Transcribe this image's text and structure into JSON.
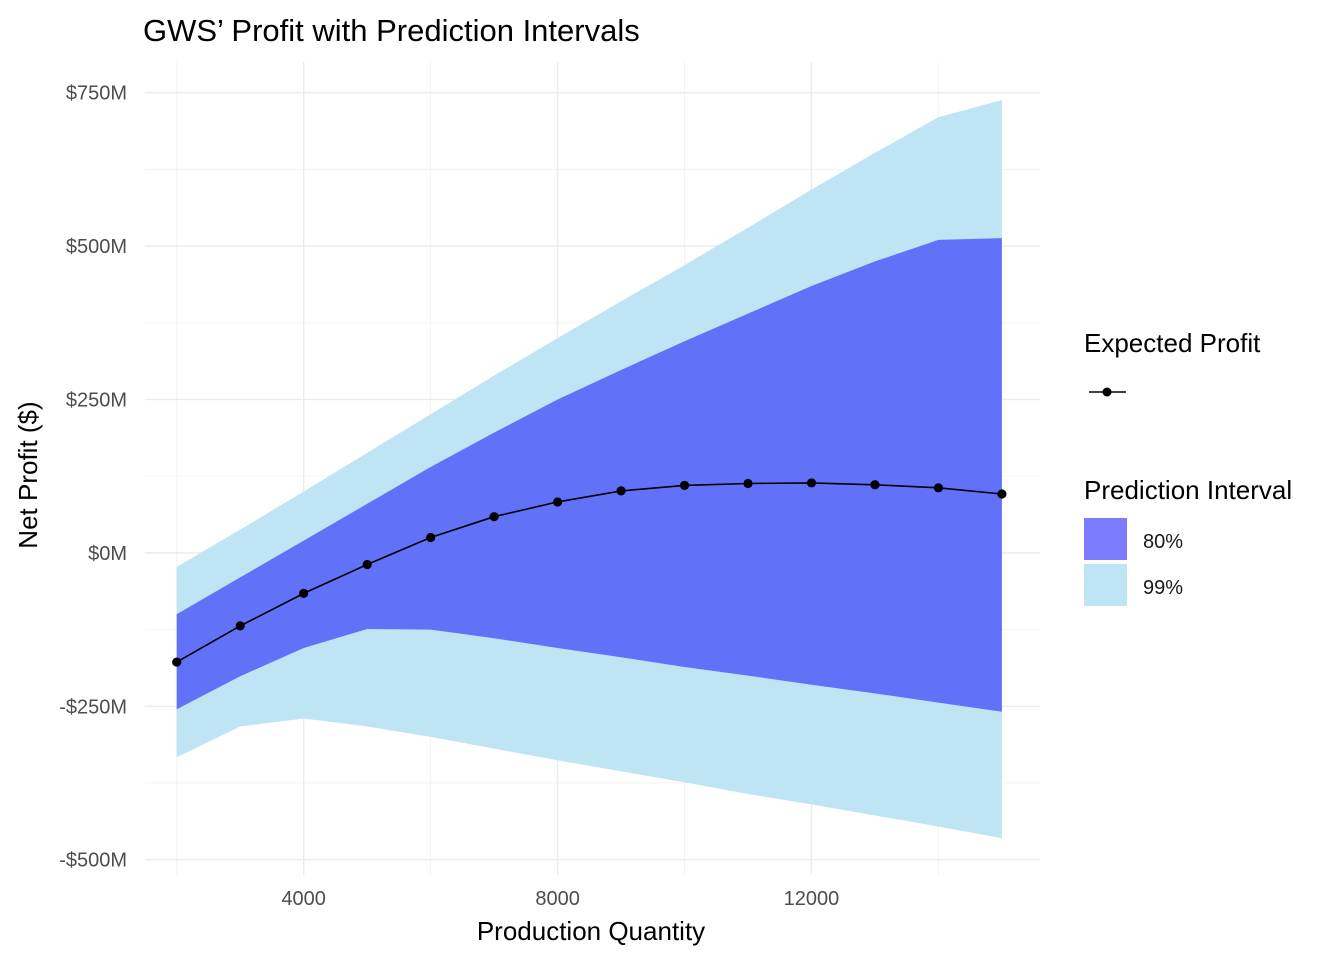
{
  "chart_data": {
    "type": "area",
    "title": "GWS’ Profit with Prediction Intervals",
    "xlabel": "Production Quantity",
    "ylabel": "Net Profit ($)",
    "xlim": [
      1500,
      15600
    ],
    "ylim": [
      -525,
      800
    ],
    "x_ticks": [
      {
        "value": 4000,
        "label": "4000"
      },
      {
        "value": 8000,
        "label": "8000"
      },
      {
        "value": 12000,
        "label": "12000"
      }
    ],
    "y_ticks": [
      {
        "value": 750,
        "label": "$750M"
      },
      {
        "value": 500,
        "label": "$500M"
      },
      {
        "value": 250,
        "label": "$250M"
      },
      {
        "value": 0,
        "label": "$0M"
      },
      {
        "value": -250,
        "label": "-$250M"
      },
      {
        "value": -500,
        "label": "-$500M"
      }
    ],
    "x": [
      2000,
      3000,
      4000,
      5000,
      6000,
      7000,
      8000,
      9000,
      10000,
      11000,
      12000,
      13000,
      14000,
      15000
    ],
    "expected_profit": {
      "name": "Expected Profit",
      "color": "#000000",
      "values": [
        -178,
        -119,
        -66,
        -19,
        25,
        59,
        83,
        101,
        110,
        113,
        114,
        111,
        106,
        96
      ]
    },
    "intervals": [
      {
        "name": "99%",
        "color": "#bfe4f3",
        "lower": [
          -333,
          -283,
          -270,
          -283,
          -300,
          -319,
          -338,
          -356,
          -374,
          -393,
          -410,
          -428,
          -446,
          -465
        ],
        "upper": [
          -23,
          38,
          100,
          163,
          226,
          289,
          350,
          410,
          469,
          530,
          592,
          652,
          710,
          738
        ]
      },
      {
        "name": "80%",
        "color": "#6272f8",
        "lower": [
          -255,
          -201,
          -155,
          -124,
          -125,
          -139,
          -155,
          -170,
          -186,
          -200,
          -215,
          -229,
          -244,
          -259
        ],
        "upper": [
          -100,
          -40,
          20,
          80,
          140,
          196,
          250,
          298,
          345,
          390,
          435,
          475,
          510,
          513
        ]
      }
    ],
    "legend": {
      "position": "right",
      "line_title": "Expected Profit",
      "fill_title": "Prediction Interval",
      "fill_entries": [
        {
          "label": "80%",
          "color": "#7b7cff"
        },
        {
          "label": "99%",
          "color": "#bfe4f3"
        }
      ]
    },
    "grid": true
  }
}
